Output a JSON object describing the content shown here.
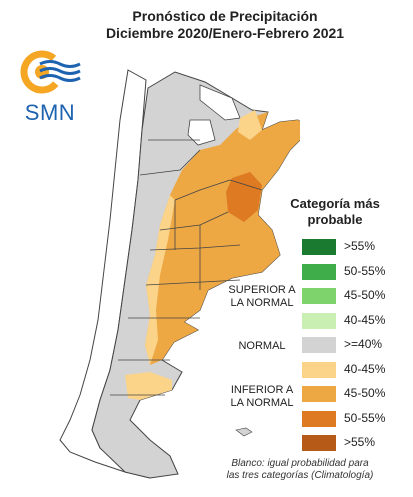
{
  "header": {
    "title_line1": "Pronóstico de Precipitación",
    "title_line2": "Diciembre 2020/Enero-Febrero 2021"
  },
  "logo": {
    "text": "SMN",
    "icon": "smn-logo-icon",
    "color": "#1e63b0",
    "accent": "#f5a623"
  },
  "legend": {
    "title_line1": "Categoría más",
    "title_line2": "probable",
    "groups": {
      "superior_line1": "SUPERIOR A",
      "superior_line2": "LA NORMAL",
      "normal": "NORMAL",
      "inferior_line1": "INFERIOR A",
      "inferior_line2": "LA NORMAL"
    },
    "items": [
      {
        "label": ">55%",
        "color": "#1a7a30"
      },
      {
        "label": "50-55%",
        "color": "#3fae4a"
      },
      {
        "label": "45-50%",
        "color": "#7fd36d"
      },
      {
        "label": "40-45%",
        "color": "#c9f0b2"
      },
      {
        "label": ">=40%",
        "color": "#d3d3d3"
      },
      {
        "label": "40-45%",
        "color": "#fbd48a"
      },
      {
        "label": "45-50%",
        "color": "#eda844"
      },
      {
        "label": "50-55%",
        "color": "#dd7a22"
      },
      {
        "label": ">55%",
        "color": "#b65a18"
      }
    ]
  },
  "footnote": {
    "line1": "Blanco: igual probabilidad para",
    "line2": "las tres categorías (Climatología)"
  },
  "map_colors": {
    "land": "#d3d3d3",
    "white": "#ffffff",
    "light_orange": "#fbd48a",
    "orange": "#eda844",
    "dark_orange": "#dd7a22",
    "border": "#444444"
  }
}
